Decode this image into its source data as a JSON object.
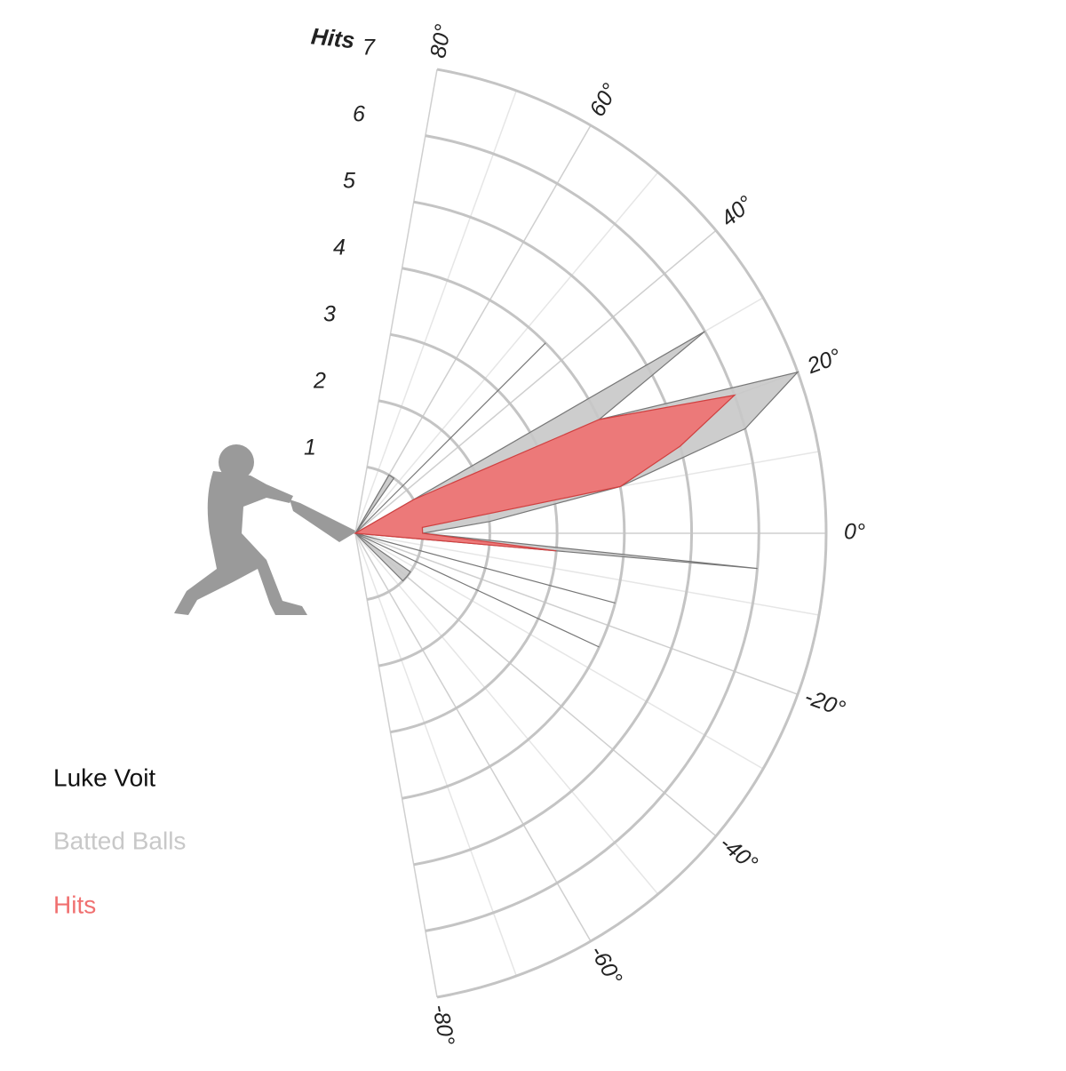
{
  "chart_data": {
    "type": "polar",
    "legend_title": "Luke Voit",
    "radial_label": "Hits",
    "x": [
      -45,
      -40,
      -35,
      -30,
      -25,
      -20,
      -15,
      -10,
      -5,
      0,
      5,
      10,
      15,
      20,
      25,
      30,
      35,
      40,
      45,
      50,
      55,
      60
    ],
    "series": [
      {
        "name": "Batted Balls",
        "color": "#c8c8c8",
        "values": [
          1,
          1,
          1,
          0,
          4,
          0,
          4,
          0,
          6,
          1,
          2,
          4,
          6,
          7,
          4,
          6,
          0,
          0,
          4,
          0,
          1,
          1
        ]
      },
      {
        "name": "Hits",
        "color": "#f07070",
        "values": [
          0,
          0,
          0,
          0,
          0,
          0,
          0,
          0,
          3,
          1,
          1,
          4,
          5,
          6,
          4,
          1,
          0,
          0,
          0,
          0,
          0,
          0
        ]
      }
    ],
    "rlim": [
      0,
      7
    ],
    "rticks": [
      1,
      2,
      3,
      4,
      5,
      6,
      7
    ],
    "xlim": [
      -80,
      80
    ],
    "xticks": [
      {
        "value": -80,
        "label": "-80°"
      },
      {
        "value": -60,
        "label": "-60°"
      },
      {
        "value": -40,
        "label": "-40°"
      },
      {
        "value": -20,
        "label": "-20°"
      },
      {
        "value": 0,
        "label": "0°"
      },
      {
        "value": 20,
        "label": "20°"
      },
      {
        "value": 40,
        "label": "40°"
      },
      {
        "value": 60,
        "label": "60°"
      },
      {
        "value": 80,
        "label": "80°"
      }
    ],
    "x_minor_ticks": [
      -70,
      -50,
      -30,
      -10,
      10,
      30,
      50,
      70
    ]
  }
}
